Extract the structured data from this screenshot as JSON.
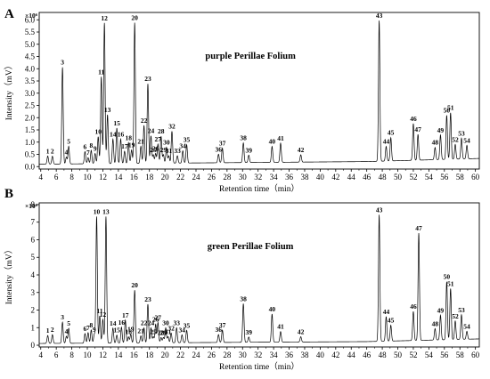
{
  "chart_data": [
    {
      "type": "line",
      "panel": "A",
      "title": "purple Perillae Folium",
      "xlabel": "Retention time（min）",
      "ylabel": "Intensity（mV）",
      "y_multiplier": "×10⁶",
      "xlim": [
        3.8,
        60.5
      ],
      "ylim": [
        -0.1,
        6.3
      ],
      "x_ticks": [
        4,
        6,
        8,
        10,
        12,
        14,
        16,
        18,
        20,
        22,
        24,
        26,
        28,
        30,
        32,
        34,
        36,
        38,
        40,
        42,
        44,
        46,
        48,
        50,
        52,
        54,
        56,
        58,
        60
      ],
      "y_ticks": [
        0.0,
        0.5,
        1.0,
        1.5,
        2.0,
        2.5,
        3.0,
        3.5,
        4.0,
        4.5,
        5.0,
        5.5,
        6.0
      ],
      "peaks": [
        {
          "label": "1",
          "rt": 4.9,
          "height": 0.33
        },
        {
          "label": "2",
          "rt": 5.5,
          "height": 0.32
        },
        {
          "label": "3",
          "rt": 6.8,
          "height": 3.95
        },
        {
          "label": "4",
          "rt": 7.3,
          "height": 0.28
        },
        {
          "label": "5",
          "rt": 7.6,
          "height": 0.72
        },
        {
          "label": "6",
          "rt": 9.7,
          "height": 0.5
        },
        {
          "label": "7",
          "rt": 10.1,
          "height": 0.25
        },
        {
          "label": "8",
          "rt": 10.5,
          "height": 0.55
        },
        {
          "label": "9",
          "rt": 11.0,
          "height": 0.42
        },
        {
          "label": "10",
          "rt": 11.4,
          "height": 1.1
        },
        {
          "label": "11",
          "rt": 11.8,
          "height": 3.55
        },
        {
          "label": "12",
          "rt": 12.2,
          "height": 5.75
        },
        {
          "label": "13",
          "rt": 12.6,
          "height": 2.0
        },
        {
          "label": "14",
          "rt": 13.3,
          "height": 1.0
        },
        {
          "label": "15",
          "rt": 13.8,
          "height": 1.45
        },
        {
          "label": "16",
          "rt": 14.3,
          "height": 1.0
        },
        {
          "label": "17",
          "rt": 14.8,
          "height": 0.5
        },
        {
          "label": "18",
          "rt": 15.3,
          "height": 0.85
        },
        {
          "label": "19",
          "rt": 15.7,
          "height": 0.55
        },
        {
          "label": "20",
          "rt": 16.1,
          "height": 5.75
        },
        {
          "label": "21",
          "rt": 16.9,
          "height": 0.7
        },
        {
          "label": "22",
          "rt": 17.3,
          "height": 1.55
        },
        {
          "label": "23",
          "rt": 17.8,
          "height": 3.25
        },
        {
          "label": "24",
          "rt": 18.2,
          "height": 1.12
        },
        {
          "label": "25",
          "rt": 18.5,
          "height": 0.35
        },
        {
          "label": "26",
          "rt": 18.8,
          "height": 0.4
        },
        {
          "label": "27",
          "rt": 19.1,
          "height": 0.78
        },
        {
          "label": "28",
          "rt": 19.5,
          "height": 1.1
        },
        {
          "label": "29",
          "rt": 19.8,
          "height": 0.35
        },
        {
          "label": "30",
          "rt": 20.2,
          "height": 0.65
        },
        {
          "label": "31",
          "rt": 20.5,
          "height": 0.3
        },
        {
          "label": "32",
          "rt": 20.9,
          "height": 1.3
        },
        {
          "label": "33",
          "rt": 21.6,
          "height": 0.3
        },
        {
          "label": "34",
          "rt": 22.3,
          "height": 0.5
        },
        {
          "label": "35",
          "rt": 22.8,
          "height": 0.75
        },
        {
          "label": "36",
          "rt": 26.9,
          "height": 0.35
        },
        {
          "label": "37",
          "rt": 27.4,
          "height": 0.6
        },
        {
          "label": "38",
          "rt": 30.1,
          "height": 0.8
        },
        {
          "label": "39",
          "rt": 30.8,
          "height": 0.3
        },
        {
          "label": "40",
          "rt": 33.8,
          "height": 0.65
        },
        {
          "label": "41",
          "rt": 34.9,
          "height": 0.78
        },
        {
          "label": "42",
          "rt": 37.5,
          "height": 0.3
        },
        {
          "label": "43",
          "rt": 47.6,
          "height": 5.75
        },
        {
          "label": "44",
          "rt": 48.5,
          "height": 0.6
        },
        {
          "label": "45",
          "rt": 49.1,
          "height": 0.95
        },
        {
          "label": "46",
          "rt": 52.0,
          "height": 1.5
        },
        {
          "label": "47",
          "rt": 52.6,
          "height": 1.05
        },
        {
          "label": "48",
          "rt": 54.8,
          "height": 0.5
        },
        {
          "label": "49",
          "rt": 55.5,
          "height": 1.0
        },
        {
          "label": "50",
          "rt": 56.3,
          "height": 1.8
        },
        {
          "label": "51",
          "rt": 56.8,
          "height": 1.9
        },
        {
          "label": "52",
          "rt": 57.4,
          "height": 0.6
        },
        {
          "label": "53",
          "rt": 58.2,
          "height": 0.85
        },
        {
          "label": "54",
          "rt": 58.9,
          "height": 0.55
        }
      ]
    },
    {
      "type": "line",
      "panel": "B",
      "title": "green Perillae Folium",
      "xlabel": "Retention time（min）",
      "ylabel": "Intensity（mV）",
      "y_multiplier": "×10⁶",
      "xlim": [
        3.8,
        60.5
      ],
      "ylim": [
        -0.1,
        8.1
      ],
      "x_ticks": [
        4,
        6,
        8,
        10,
        12,
        14,
        16,
        18,
        20,
        22,
        24,
        26,
        28,
        30,
        32,
        34,
        36,
        38,
        40,
        42,
        44,
        46,
        48,
        50,
        52,
        54,
        56,
        58,
        60
      ],
      "y_ticks": [
        0,
        1,
        2,
        3,
        4,
        5,
        6,
        7,
        8
      ],
      "peaks": [
        {
          "label": "1",
          "rt": 4.9,
          "height": 0.45
        },
        {
          "label": "2",
          "rt": 5.5,
          "height": 0.5
        },
        {
          "label": "3",
          "rt": 6.8,
          "height": 1.2
        },
        {
          "label": "4",
          "rt": 7.3,
          "height": 0.4
        },
        {
          "label": "5",
          "rt": 7.6,
          "height": 0.85
        },
        {
          "label": "6",
          "rt": 9.7,
          "height": 0.55
        },
        {
          "label": "7",
          "rt": 10.1,
          "height": 0.6
        },
        {
          "label": "8",
          "rt": 10.5,
          "height": 0.75
        },
        {
          "label": "9",
          "rt": 10.9,
          "height": 0.5
        },
        {
          "label": "10",
          "rt": 11.2,
          "height": 7.2
        },
        {
          "label": "11",
          "rt": 11.6,
          "height": 1.55
        },
        {
          "label": "12",
          "rt": 12.0,
          "height": 1.35
        },
        {
          "label": "13",
          "rt": 12.4,
          "height": 7.2
        },
        {
          "label": "14",
          "rt": 13.3,
          "height": 0.85
        },
        {
          "label": "15",
          "rt": 13.8,
          "height": 0.45
        },
        {
          "label": "16",
          "rt": 14.4,
          "height": 0.9
        },
        {
          "label": "17",
          "rt": 14.9,
          "height": 1.3
        },
        {
          "label": "18",
          "rt": 15.3,
          "height": 0.35
        },
        {
          "label": "19",
          "rt": 15.6,
          "height": 0.5
        },
        {
          "label": "20",
          "rt": 16.1,
          "height": 3.0
        },
        {
          "label": "21",
          "rt": 16.9,
          "height": 0.4
        },
        {
          "label": "22",
          "rt": 17.3,
          "height": 0.85
        },
        {
          "label": "23",
          "rt": 17.8,
          "height": 2.2
        },
        {
          "label": "24",
          "rt": 18.2,
          "height": 0.85
        },
        {
          "label": "25",
          "rt": 18.5,
          "height": 0.35
        },
        {
          "label": "26",
          "rt": 18.8,
          "height": 1.05
        },
        {
          "label": "27",
          "rt": 19.1,
          "height": 1.15
        },
        {
          "label": "28",
          "rt": 19.5,
          "height": 0.3
        },
        {
          "label": "29",
          "rt": 19.8,
          "height": 0.3
        },
        {
          "label": "30",
          "rt": 20.1,
          "height": 0.85
        },
        {
          "label": "31",
          "rt": 20.4,
          "height": 0.35
        },
        {
          "label": "32",
          "rt": 20.8,
          "height": 0.55
        },
        {
          "label": "33",
          "rt": 21.5,
          "height": 0.85
        },
        {
          "label": "34",
          "rt": 22.2,
          "height": 0.45
        },
        {
          "label": "35",
          "rt": 22.8,
          "height": 0.7
        },
        {
          "label": "36",
          "rt": 26.9,
          "height": 0.45
        },
        {
          "label": "37",
          "rt": 27.4,
          "height": 0.7
        },
        {
          "label": "38",
          "rt": 30.1,
          "height": 2.2
        },
        {
          "label": "39",
          "rt": 30.8,
          "height": 0.3
        },
        {
          "label": "40",
          "rt": 33.8,
          "height": 1.6
        },
        {
          "label": "41",
          "rt": 34.9,
          "height": 0.6
        },
        {
          "label": "42",
          "rt": 37.5,
          "height": 0.3
        },
        {
          "label": "43",
          "rt": 47.6,
          "height": 7.2
        },
        {
          "label": "44",
          "rt": 48.5,
          "height": 1.4
        },
        {
          "label": "45",
          "rt": 49.1,
          "height": 0.9
        },
        {
          "label": "46",
          "rt": 52.0,
          "height": 1.65
        },
        {
          "label": "47",
          "rt": 52.7,
          "height": 6.1
        },
        {
          "label": "48",
          "rt": 54.8,
          "height": 0.65
        },
        {
          "label": "49",
          "rt": 55.5,
          "height": 1.4
        },
        {
          "label": "50",
          "rt": 56.3,
          "height": 3.3
        },
        {
          "label": "51",
          "rt": 56.8,
          "height": 2.9
        },
        {
          "label": "52",
          "rt": 57.4,
          "height": 1.05
        },
        {
          "label": "53",
          "rt": 58.2,
          "height": 1.4
        },
        {
          "label": "54",
          "rt": 58.9,
          "height": 0.45
        }
      ]
    }
  ]
}
